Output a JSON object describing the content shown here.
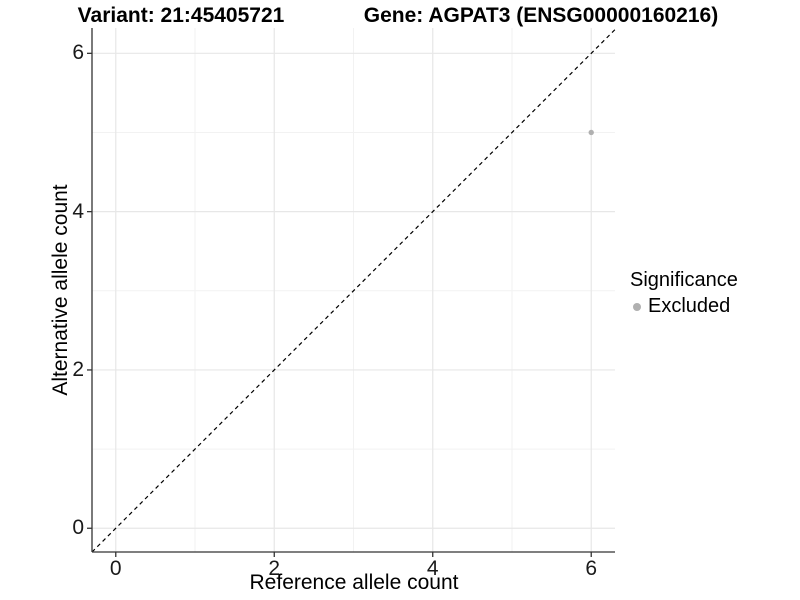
{
  "titles": {
    "variant": "Variant: 21:45405721",
    "gene": "Gene: AGPAT3 (ENSG00000160216)"
  },
  "legend": {
    "title": "Significance",
    "position": "right",
    "items": [
      {
        "label": "Excluded",
        "color": "#b0b0b0"
      }
    ]
  },
  "chart_data": {
    "type": "scatter",
    "title": "Variant: 21:45405721   Gene: AGPAT3 (ENSG00000160216)",
    "xlabel": "Reference allele count",
    "ylabel": "Alternative allele count",
    "xlim": [
      -0.3,
      6.3
    ],
    "ylim": [
      -0.3,
      6.32
    ],
    "x_ticks": [
      0,
      2,
      4,
      6
    ],
    "y_ticks": [
      0,
      2,
      4,
      6
    ],
    "grid_major": [
      0,
      2,
      4,
      6
    ],
    "grid_minor": [
      1,
      3,
      5
    ],
    "grid_on": true,
    "series": [
      {
        "name": "Excluded",
        "color": "#b0b0b0",
        "points": [
          {
            "x": 6,
            "y": 5
          }
        ]
      }
    ],
    "reference_line": {
      "type": "identity y=x",
      "style": "dashed",
      "color": "#000000"
    },
    "legend_position": "right"
  },
  "colors": {
    "background": "#ffffff",
    "axis_line": "#333333",
    "grid_major": "#e7e7e7",
    "grid_minor": "#f2f2f2",
    "point": "#b0b0b0",
    "text": "#000000"
  }
}
